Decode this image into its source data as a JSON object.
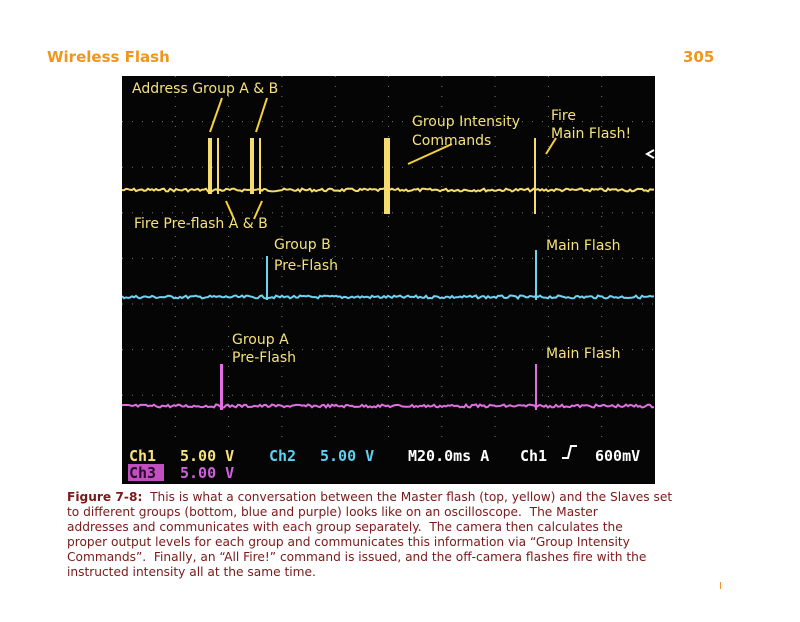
{
  "header": {
    "title": "Wireless Flash",
    "page_number": "305"
  },
  "figure": {
    "annotations": {
      "address_group": "Address Group A & B",
      "fire_preflash": "Fire Pre-flash A & B",
      "group_intensity": [
        "Group Intensity",
        "Commands"
      ],
      "fire_main": [
        "Fire",
        "Main Flash!"
      ],
      "group_b": [
        "Group B",
        "Pre-Flash"
      ],
      "main_flash_b": "Main Flash",
      "group_a": [
        "Group A",
        "Pre-Flash"
      ],
      "main_flash_a": "Main Flash"
    },
    "status": {
      "ch1": "Ch1",
      "ch1_scale": "5.00 V",
      "ch2": "Ch2",
      "ch2_scale": "5.00 V",
      "timebase": "M20.0ms A",
      "trigger_source": "Ch1",
      "trigger_level": "600mV",
      "ch3": "Ch3",
      "ch3_scale": "5.00 V"
    }
  },
  "caption": {
    "label": "Figure 7-8:",
    "lines": [
      "This is what a conversation between the Master flash (top, yellow) and the Slaves set",
      "to different groups (bottom, blue and purple) looks like on an oscilloscope.  The Master",
      "addresses and communicates with each group separately.  The camera then calculates the",
      "proper output levels for each group and communicates this information via “Group Intensity",
      "Commands”.  Finally, an “All Fire!” command is issued, and the off-camera flashes fire with the",
      "instructed intensity all at the same time."
    ]
  }
}
